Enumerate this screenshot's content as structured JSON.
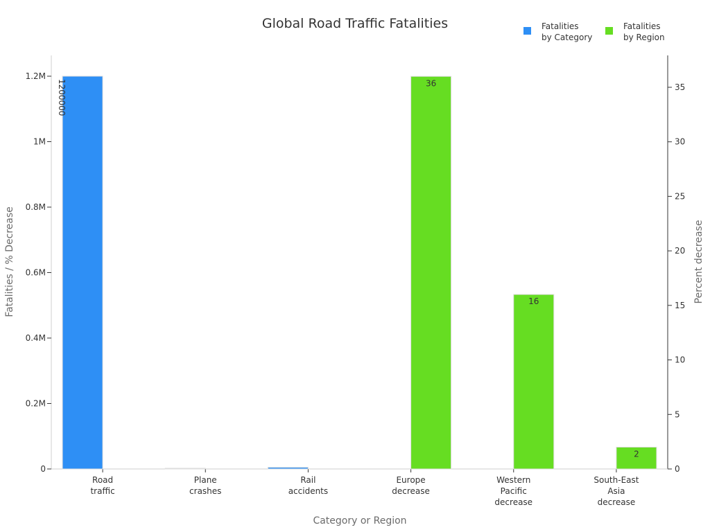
{
  "chart_data": {
    "type": "bar",
    "title": "Global Road Traffic Fatalities",
    "xlabel": "Category or Region",
    "ylabel_left": "Fatalities / % Decrease",
    "ylabel_right": "Percent decrease",
    "categories": [
      "Road traffic",
      "Plane crashes",
      "Rail accidents",
      "Europe decrease",
      "Western Pacific decrease",
      "South-East Asia decrease"
    ],
    "category_lines": [
      [
        "Road",
        "traffic"
      ],
      [
        "Plane",
        "crashes"
      ],
      [
        "Rail",
        "accidents"
      ],
      [
        "Europe",
        "decrease"
      ],
      [
        "Western",
        "Pacific",
        "decrease"
      ],
      [
        "South-East",
        "Asia",
        "decrease"
      ]
    ],
    "series": [
      {
        "name": "Fatalities by Category",
        "legend_lines": [
          "Fatalities",
          "by Category"
        ],
        "axis": "left",
        "color": "#2e8ff5",
        "values": [
          1200000,
          500,
          5000,
          null,
          null,
          null
        ],
        "labels": [
          "1200000",
          "",
          "",
          "",
          "",
          ""
        ]
      },
      {
        "name": "Fatalities by Region",
        "legend_lines": [
          "Fatalities",
          "by Region"
        ],
        "axis": "right",
        "color": "#66dd22",
        "values": [
          null,
          null,
          null,
          36,
          16,
          2
        ],
        "labels": [
          "",
          "",
          "",
          "36",
          "16",
          "2"
        ]
      }
    ],
    "ylim_left": [
      0,
      1260000
    ],
    "ylim_right": [
      0,
      37.8
    ],
    "yticks_left": [
      0,
      200000,
      400000,
      600000,
      800000,
      1000000,
      1200000
    ],
    "ytick_labels_left": [
      "0",
      "0.2M",
      "0.4M",
      "0.6M",
      "0.8M",
      "1M",
      "1.2M"
    ],
    "yticks_right": [
      0,
      5,
      10,
      15,
      20,
      25,
      30,
      35
    ],
    "legend_position": "top-right",
    "grid": false
  }
}
